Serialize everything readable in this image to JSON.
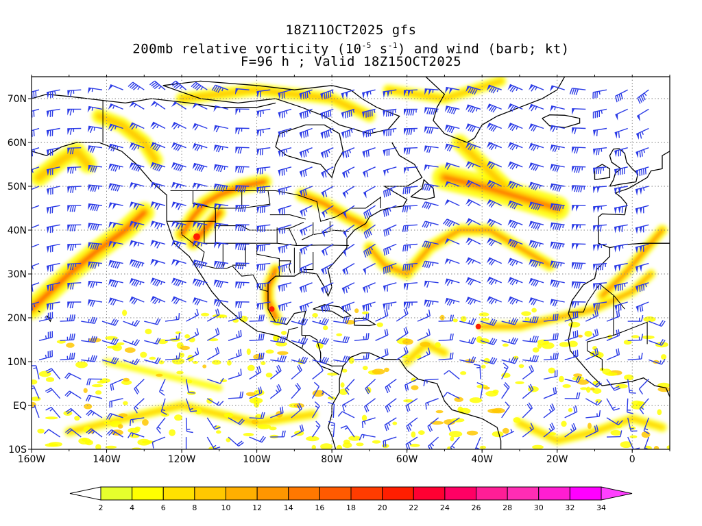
{
  "title": {
    "line1": "18Z11OCT2025 gfs",
    "line2_pre": "200mb relative vorticity (10",
    "line2_exp1": "-5",
    "line2_mid": " s",
    "line2_exp2": "-1",
    "line2_post": ") and wind (barb; kt)",
    "line3": "F=96 h ; Valid 18Z15OCT2025"
  },
  "map": {
    "lon_range": [
      -160,
      10
    ],
    "lat_range": [
      -10,
      75
    ],
    "lon_ticks": [
      {
        "value": -160,
        "label": "160W"
      },
      {
        "value": -140,
        "label": "140W"
      },
      {
        "value": -120,
        "label": "120W"
      },
      {
        "value": -100,
        "label": "100W"
      },
      {
        "value": -80,
        "label": "80W"
      },
      {
        "value": -60,
        "label": "60W"
      },
      {
        "value": -40,
        "label": "40W"
      },
      {
        "value": -20,
        "label": "20W"
      },
      {
        "value": 0,
        "label": "0"
      }
    ],
    "lat_ticks": [
      {
        "value": 70,
        "label": "70N"
      },
      {
        "value": 60,
        "label": "60N"
      },
      {
        "value": 50,
        "label": "50N"
      },
      {
        "value": 40,
        "label": "40N"
      },
      {
        "value": 30,
        "label": "30N"
      },
      {
        "value": 20,
        "label": "20N"
      },
      {
        "value": 10,
        "label": "10N"
      },
      {
        "value": 0,
        "label": "EQ"
      },
      {
        "value": -10,
        "label": "10S"
      }
    ]
  },
  "colorbar": {
    "labels": [
      "2",
      "4",
      "6",
      "8",
      "10",
      "12",
      "14",
      "16",
      "18",
      "20",
      "22",
      "24",
      "26",
      "28",
      "30",
      "32",
      "34"
    ],
    "colors": [
      "#e6ff2d",
      "#ffff00",
      "#ffe100",
      "#ffc800",
      "#ffaf00",
      "#ff9600",
      "#ff7800",
      "#ff5a00",
      "#ff3c00",
      "#ff1e00",
      "#ff0032",
      "#ff0064",
      "#ff1e96",
      "#ff2db4",
      "#ff1ed2",
      "#ff00ff"
    ],
    "under_color": "#ffffff",
    "over_color": "#ff40ff"
  },
  "colors": {
    "barb": "#2a3ae6",
    "coast": "#000000",
    "grid": "#808080",
    "vort_low": "#ffff00",
    "vort_mid": "#ffc800",
    "vort_high": "#ff5a00",
    "vort_max": "#ff1e00"
  }
}
